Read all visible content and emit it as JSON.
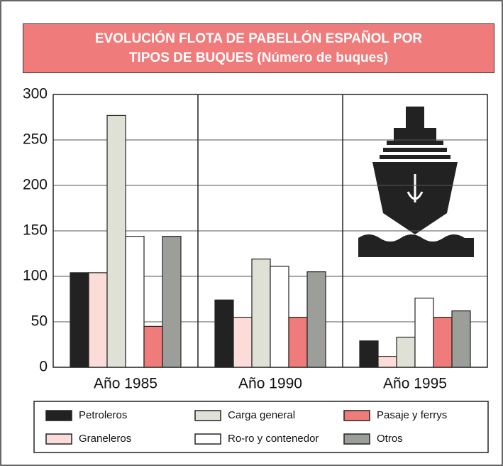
{
  "chart_data": {
    "type": "bar",
    "title": "EVOLUCIÓN FLOTA DE PABELLÓN ESPAÑOL POR TIPOS DE BUQUES (Número de buques)",
    "categories": [
      "Año 1985",
      "Año 1990",
      "Año 1995"
    ],
    "series": [
      {
        "name": "Petroleros",
        "color": "#222222",
        "values": [
          104,
          74,
          29
        ]
      },
      {
        "name": "Graneleros",
        "color": "#fcdcd8",
        "values": [
          104,
          55,
          12
        ]
      },
      {
        "name": "Carga general",
        "color": "#dfe1d6",
        "values": [
          277,
          119,
          33
        ]
      },
      {
        "name": "Ro-ro y contenedor",
        "color": "#ffffff",
        "values": [
          144,
          111,
          76
        ]
      },
      {
        "name": "Pasaje y ferrys",
        "color": "#ef7c7a",
        "values": [
          45,
          55,
          55
        ]
      },
      {
        "name": "Otros",
        "color": "#9c9e9a",
        "values": [
          144,
          105,
          62
        ]
      }
    ],
    "ylim": [
      0,
      300
    ],
    "yticks": [
      0,
      50,
      100,
      150,
      200,
      250,
      300
    ],
    "grid": true
  }
}
